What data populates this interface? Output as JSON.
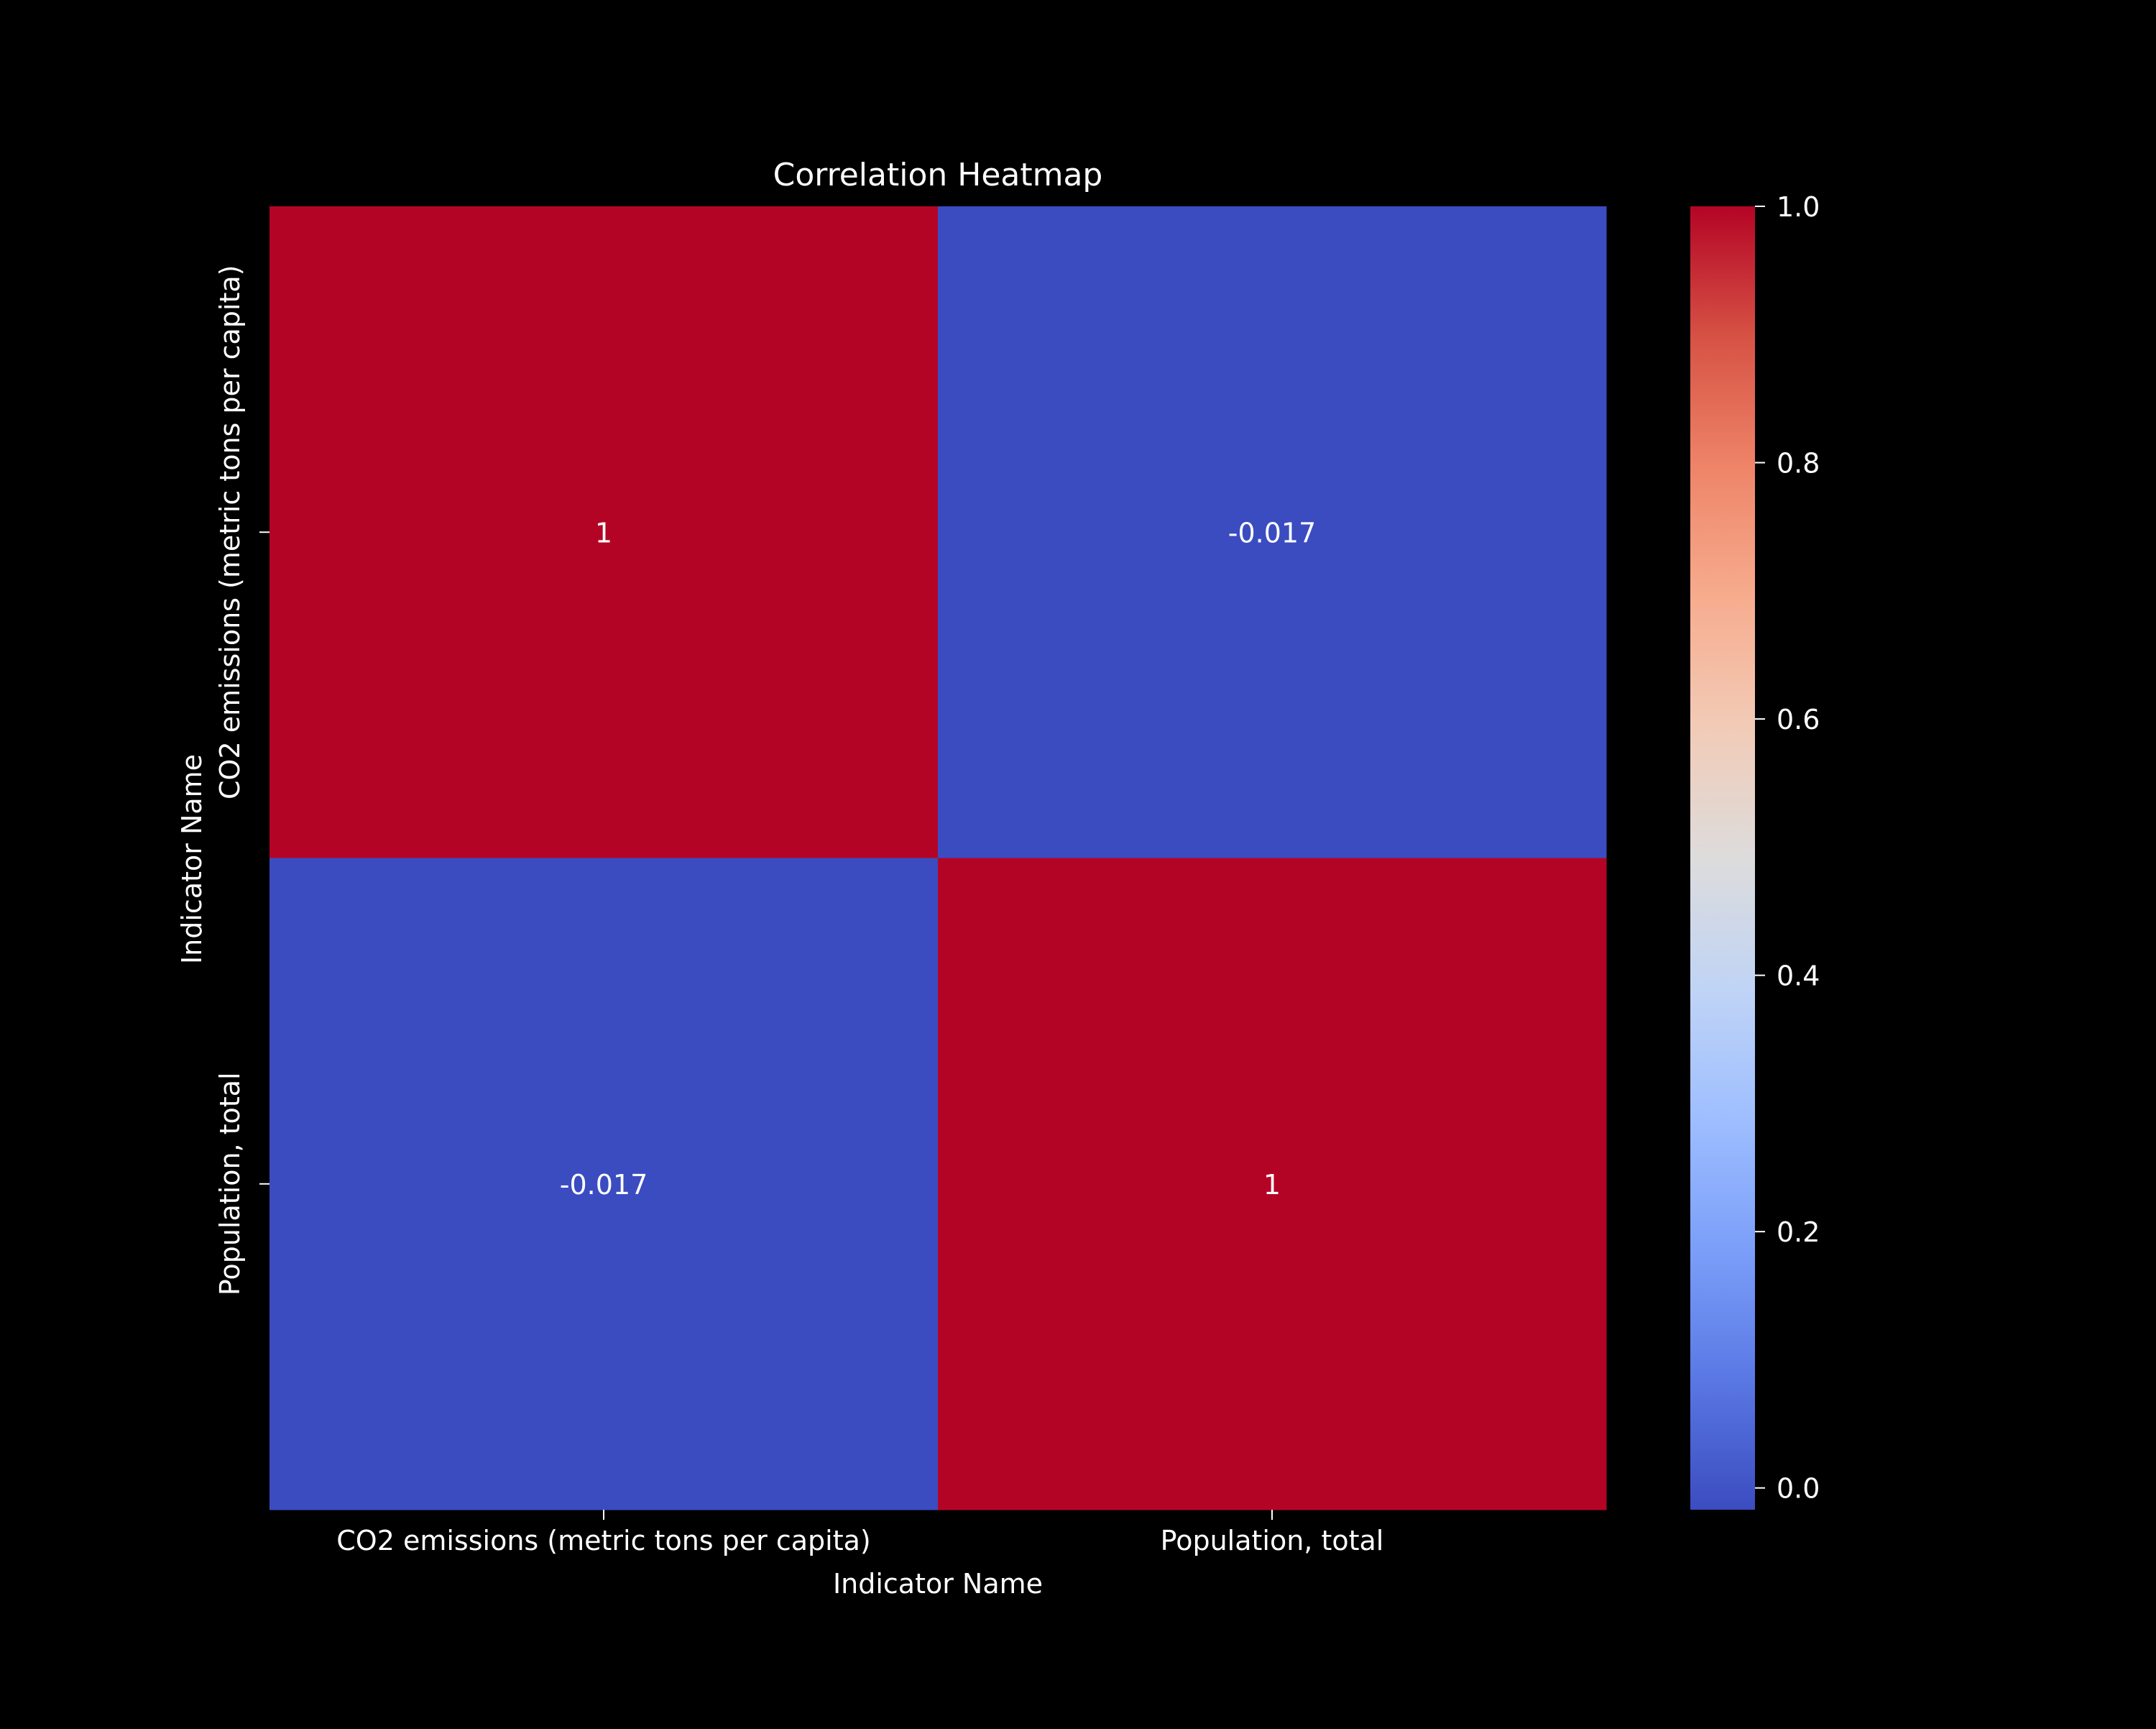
{
  "chart_data": {
    "type": "heatmap",
    "title": "Correlation Heatmap",
    "xlabel": "Indicator Name",
    "ylabel": "Indicator Name",
    "x_categories": [
      "CO2 emissions (metric tons per capita)",
      "Population, total"
    ],
    "y_categories": [
      "CO2 emissions (metric tons per capita)",
      "Population, total"
    ],
    "values": [
      [
        1,
        -0.017
      ],
      [
        -0.017,
        1
      ]
    ],
    "annotations": [
      [
        "1",
        "-0.017"
      ],
      [
        "-0.017",
        "1"
      ]
    ],
    "colormap": "coolwarm",
    "colors": {
      "high": "#b40426",
      "low": "#3b4cc0",
      "background": "#000000",
      "text": "#ffffff"
    },
    "colorbar": {
      "range": [
        -0.017,
        1.0
      ],
      "ticks": [
        0.0,
        0.2,
        0.4,
        0.6,
        0.8,
        1.0
      ],
      "tick_labels": [
        "0.0",
        "0.2",
        "0.4",
        "0.6",
        "0.8",
        "1.0"
      ]
    },
    "grid": false
  }
}
